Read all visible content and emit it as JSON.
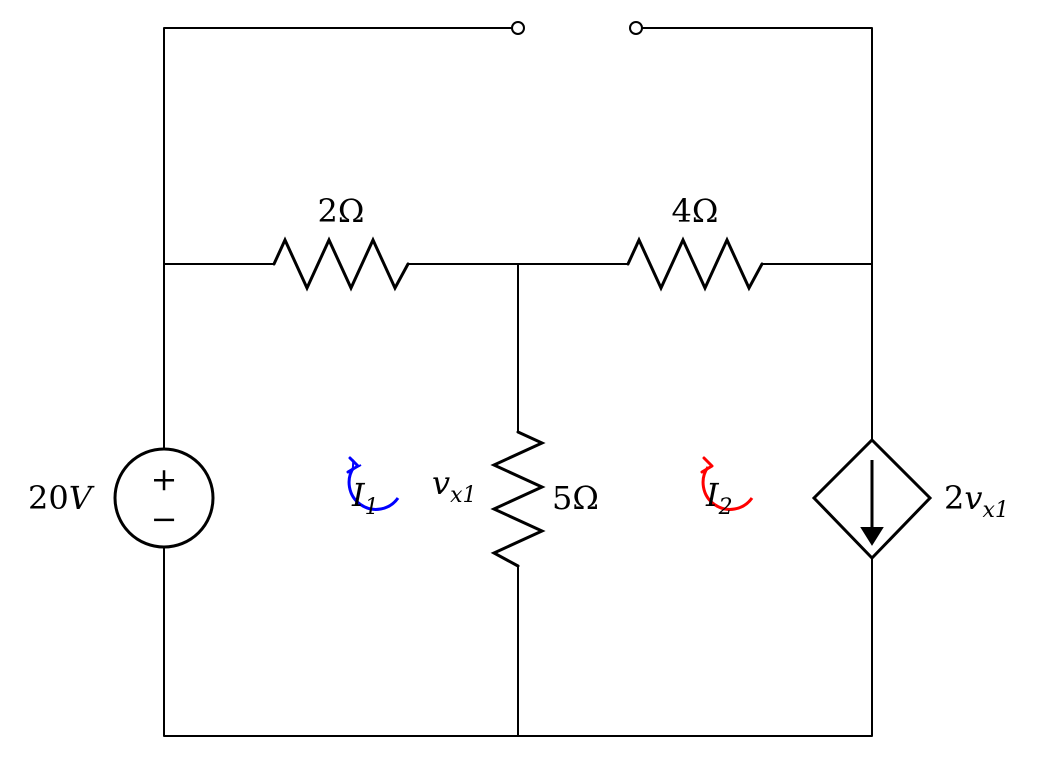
{
  "labels": {
    "voltage_source": {
      "value": "20",
      "unit": "V"
    },
    "resistor_left": {
      "value": "2",
      "unit": "Ω"
    },
    "resistor_right": {
      "value": "4",
      "unit": "Ω"
    },
    "resistor_middle": {
      "value": "5",
      "unit": "Ω"
    },
    "voltage_var": {
      "base": "v",
      "sub": "x1"
    },
    "dependent_source": {
      "coef": "2",
      "var": "v",
      "sub": "x1"
    },
    "mesh_current_1": {
      "base": "I",
      "sub": "1"
    },
    "mesh_current_2": {
      "base": "I",
      "sub": "2"
    },
    "source_plus": "+",
    "source_minus": "−"
  },
  "colors": {
    "wire": "#000000",
    "mesh_current_1": "#0000ff",
    "mesh_current_2": "#ff0000"
  }
}
